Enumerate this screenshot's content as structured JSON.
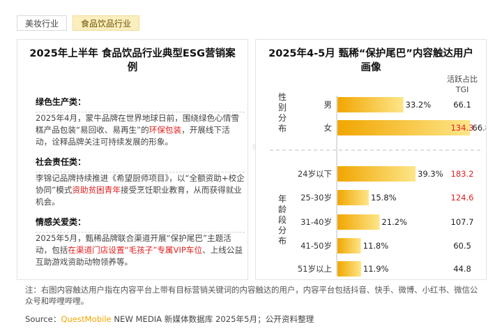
{
  "tabs": [
    {
      "label": "美妆行业",
      "active": false
    },
    {
      "label": "食品饮品行业",
      "active": true
    }
  ],
  "watermark": "QUESTMOBILE",
  "left_panel": {
    "title": "2025年上半年 食品饮品行业典型ESG营销案例",
    "cases": [
      {
        "title": "绿色生产类：",
        "segments": [
          {
            "text": "2025年4月，蒙牛品牌在世界地球日前，围绕绿色心情雪糕产品包装“易回收、易再生”的",
            "hl": false
          },
          {
            "text": "环保包装",
            "hl": true
          },
          {
            "text": "，开展线下活动，诠释品牌关注可持续发展的形象。",
            "hl": false
          }
        ]
      },
      {
        "title": "社会责任类：",
        "segments": [
          {
            "text": "李锦记品牌持续推进《希望厨师项目》，以“全额资助+校企协同”模式",
            "hl": false
          },
          {
            "text": "资助贫困青年",
            "hl": true
          },
          {
            "text": "接受烹饪职业教育，从而获得就业机会。",
            "hl": false
          }
        ]
      },
      {
        "title": "情感关爱类：",
        "segments": [
          {
            "text": "2025年5月，甄稀品牌联合渠道开展“保护尾巴”主题活动，包括",
            "hl": false
          },
          {
            "text": "在渠道门店设置“毛孩子”专属VIP车位",
            "hl": true
          },
          {
            "text": "、上线公益互助游戏资助动物领养等。",
            "hl": false
          }
        ]
      }
    ]
  },
  "right_panel": {
    "title": "2025年4-5月 甄稀“保护尾巴”内容触达用户画像",
    "col_header": [
      "活跃占比",
      "TGI"
    ],
    "group_labels": [
      "性别分布",
      "年龄段分布"
    ]
  },
  "chart_data": {
    "type": "bar",
    "orientation": "horizontal",
    "categories": [
      "男",
      "女",
      "24岁以下",
      "25-30岁",
      "31-40岁",
      "41-50岁",
      "51岁以上"
    ],
    "groups": [
      {
        "label": "性别分布",
        "categories": [
          "男",
          "女"
        ]
      },
      {
        "label": "年龄段分布",
        "categories": [
          "24岁以下",
          "25-30岁",
          "31-40岁",
          "41-50岁",
          "51岁以上"
        ]
      }
    ],
    "series": [
      {
        "name": "活跃占比",
        "values": [
          33.2,
          66.8,
          39.3,
          15.8,
          21.2,
          11.8,
          11.9
        ],
        "value_labels": [
          "33.2%",
          "66.8%",
          "39.3%",
          "15.8%",
          "21.2%",
          "11.8%",
          "11.9%"
        ]
      }
    ],
    "tgi": {
      "name": "TGI",
      "values": [
        66.1,
        134.3,
        183.2,
        124.6,
        107.7,
        60.5,
        44.8
      ],
      "labels": [
        "66.1",
        "134.3",
        "183.2",
        "124.6",
        "107.7",
        "60.5",
        "44.8"
      ],
      "highlight": [
        false,
        true,
        true,
        true,
        false,
        false,
        false
      ]
    },
    "xlim": [
      0,
      70
    ],
    "grid": false,
    "colors": {
      "bar_start": "#f1a600",
      "bar_end": "#fde68a",
      "highlight": "#e02020",
      "normal": "#222222"
    }
  },
  "note": "注：右图内容触达用户指在内容平台上带有目标营销关键词的内容触达的用户，内容平台包括抖音、快手、微博、小红书、微信公众号和哔哩哔哩。",
  "source": {
    "prefix": "Source：",
    "brand": "QuestMobile",
    "suffix": " NEW MEDIA 新媒体数据库 2025年5月；公开资料整理"
  }
}
